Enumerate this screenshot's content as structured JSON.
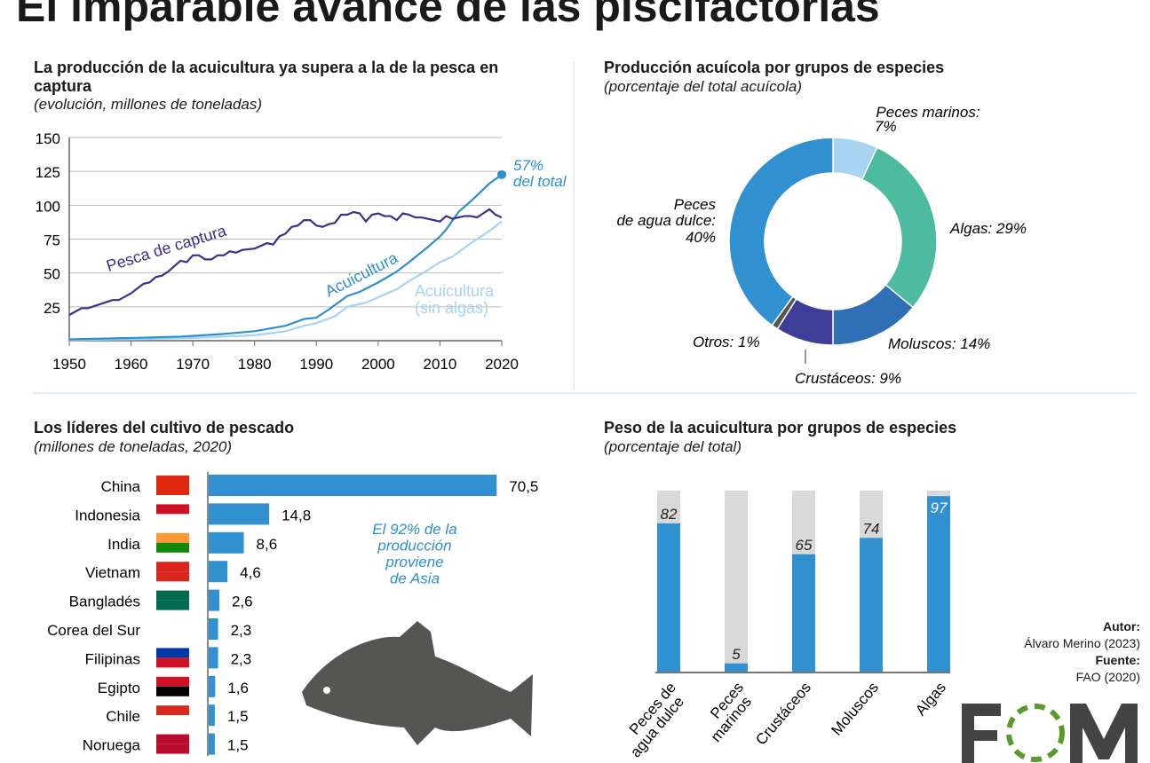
{
  "title": "El imparable avance de las piscifactorías",
  "credits": {
    "author_label": "Autor:",
    "author": "Álvaro Merino (2023)",
    "source_label": "Fuente:",
    "source": "FAO (2020)",
    "logo": "EOM"
  },
  "chart_data": [
    {
      "type": "line",
      "title": "La producción de la acuicultura ya supera a la de la pesca en captura",
      "subtitle": "(evolución, millones de toneladas)",
      "xlim": [
        1950,
        2020
      ],
      "ylim": [
        0,
        150
      ],
      "yticks": [
        "25",
        "50",
        "75",
        "100",
        "125",
        "150"
      ],
      "xticks": [
        "1950",
        "1960",
        "1970",
        "1980",
        "1990",
        "2000",
        "2010",
        "2020"
      ],
      "grid": true,
      "annotation": {
        "line1": "57%",
        "line2": "del total"
      },
      "series": [
        {
          "name": "Pesca de captura",
          "color": "#3d2f8a",
          "points": [
            [
              1950,
              19
            ],
            [
              1952,
              24
            ],
            [
              1953,
              24
            ],
            [
              1955,
              27
            ],
            [
              1957,
              30
            ],
            [
              1958,
              30
            ],
            [
              1960,
              35
            ],
            [
              1962,
              42
            ],
            [
              1963,
              43
            ],
            [
              1964,
              47
            ],
            [
              1965,
              48
            ],
            [
              1966,
              51
            ],
            [
              1968,
              59
            ],
            [
              1969,
              58
            ],
            [
              1970,
              63
            ],
            [
              1971,
              63
            ],
            [
              1972,
              60
            ],
            [
              1973,
              60
            ],
            [
              1974,
              63
            ],
            [
              1975,
              63
            ],
            [
              1976,
              66
            ],
            [
              1977,
              65
            ],
            [
              1978,
              67
            ],
            [
              1980,
              68
            ],
            [
              1982,
              72
            ],
            [
              1983,
              71
            ],
            [
              1984,
              77
            ],
            [
              1985,
              79
            ],
            [
              1986,
              84
            ],
            [
              1987,
              85
            ],
            [
              1988,
              89
            ],
            [
              1989,
              89
            ],
            [
              1990,
              85
            ],
            [
              1991,
              84
            ],
            [
              1992,
              86
            ],
            [
              1993,
              87
            ],
            [
              1994,
              93
            ],
            [
              1995,
              93
            ],
            [
              1996,
              95
            ],
            [
              1997,
              94
            ],
            [
              1998,
              88
            ],
            [
              1999,
              93
            ],
            [
              2000,
              94
            ],
            [
              2001,
              92
            ],
            [
              2002,
              92
            ],
            [
              2003,
              89
            ],
            [
              2004,
              94
            ],
            [
              2005,
              93
            ],
            [
              2006,
              91
            ],
            [
              2007,
              91
            ],
            [
              2008,
              90
            ],
            [
              2009,
              89
            ],
            [
              2010,
              88
            ],
            [
              2011,
              92
            ],
            [
              2012,
              90
            ],
            [
              2013,
              91
            ],
            [
              2014,
              92
            ],
            [
              2015,
              92
            ],
            [
              2016,
              91
            ],
            [
              2017,
              94
            ],
            [
              2018,
              97
            ],
            [
              2019,
              93
            ],
            [
              2020,
              91
            ]
          ]
        },
        {
          "name": "Acuicultura",
          "color": "#2e8fd0",
          "points": [
            [
              1950,
              1
            ],
            [
              1960,
              2
            ],
            [
              1968,
              3
            ],
            [
              1970,
              3.5
            ],
            [
              1975,
              5
            ],
            [
              1980,
              7
            ],
            [
              1985,
              11
            ],
            [
              1988,
              16
            ],
            [
              1990,
              17
            ],
            [
              1992,
              23
            ],
            [
              1995,
              33
            ],
            [
              1997,
              36
            ],
            [
              2000,
              43
            ],
            [
              2003,
              51
            ],
            [
              2005,
              58
            ],
            [
              2008,
              69
            ],
            [
              2010,
              77
            ],
            [
              2011,
              82
            ],
            [
              2013,
              95
            ],
            [
              2015,
              103
            ],
            [
              2018,
              116
            ],
            [
              2020,
              122.6
            ]
          ]
        },
        {
          "name": "Acuicultura (sin algas)",
          "label1": "Acuicultura",
          "label2": "(sin algas)",
          "color": "#a6d3f5",
          "points": [
            [
              1950,
              0.5
            ],
            [
              1960,
              1
            ],
            [
              1970,
              2
            ],
            [
              1980,
              4
            ],
            [
              1985,
              7
            ],
            [
              1988,
              11
            ],
            [
              1990,
              13
            ],
            [
              1993,
              18
            ],
            [
              1995,
              25
            ],
            [
              1998,
              28
            ],
            [
              2000,
              32
            ],
            [
              2003,
              38
            ],
            [
              2005,
              44
            ],
            [
              2008,
              52
            ],
            [
              2010,
              58
            ],
            [
              2012,
              62
            ],
            [
              2015,
              72
            ],
            [
              2018,
              81
            ],
            [
              2020,
              88
            ]
          ]
        }
      ]
    },
    {
      "type": "pie",
      "title": "Producción acuícola por grupos de especies",
      "subtitle": "(porcentaje del total acuícola)",
      "slices": [
        {
          "label": "Peces marinos:",
          "value": 7,
          "text": "7%",
          "color": "#a8d4f2"
        },
        {
          "label": "Algas: 29%",
          "value": 29,
          "color": "#4dbb9e"
        },
        {
          "label": "Moluscos: 14%",
          "value": 14,
          "color": "#2f6fb6"
        },
        {
          "label": "Crustáceos: 9%",
          "value": 9,
          "color": "#3e3e98"
        },
        {
          "label": "Otros: 1%",
          "value": 1,
          "color": "#555555"
        },
        {
          "label": "Peces de agua dulce: 40%",
          "l1": "Peces",
          "l2": "de agua dulce:",
          "l3": "40%",
          "value": 40,
          "color": "#3090d0"
        }
      ]
    },
    {
      "type": "bar",
      "orientation": "horizontal",
      "title": "Los líderes del cultivo de pescado",
      "subtitle": "(millones de toneladas, 2020)",
      "categories": [
        "China",
        "Indonesia",
        "India",
        "Vietnam",
        "Bangladés",
        "Corea del Sur",
        "Filipinas",
        "Egipto",
        "Chile",
        "Noruega"
      ],
      "values": [
        70.5,
        14.8,
        8.6,
        4.6,
        2.6,
        2.3,
        2.3,
        1.6,
        1.5,
        1.5
      ],
      "labels": [
        "70,5",
        "14,8",
        "8,6",
        "4,6",
        "2,6",
        "2,3",
        "2,3",
        "1,6",
        "1,5",
        "1,5"
      ],
      "color": "#3090d0",
      "annotation": [
        "El 92% de la",
        "producción",
        "proviene",
        "de Asia"
      ]
    },
    {
      "type": "bar",
      "title": "Peso de la acuicultura por grupos de especies",
      "subtitle": "(porcentaje del total)",
      "categories": [
        [
          "Peces de",
          "agua dulce"
        ],
        [
          "Peces",
          "marinos"
        ],
        [
          "Crustáceos"
        ],
        [
          "Moluscos"
        ],
        [
          "Algas"
        ]
      ],
      "values": [
        82,
        5,
        65,
        74,
        97
      ],
      "ylim": [
        0,
        100
      ],
      "color": "#3090d0",
      "background_color": "#d9d9d9"
    }
  ]
}
